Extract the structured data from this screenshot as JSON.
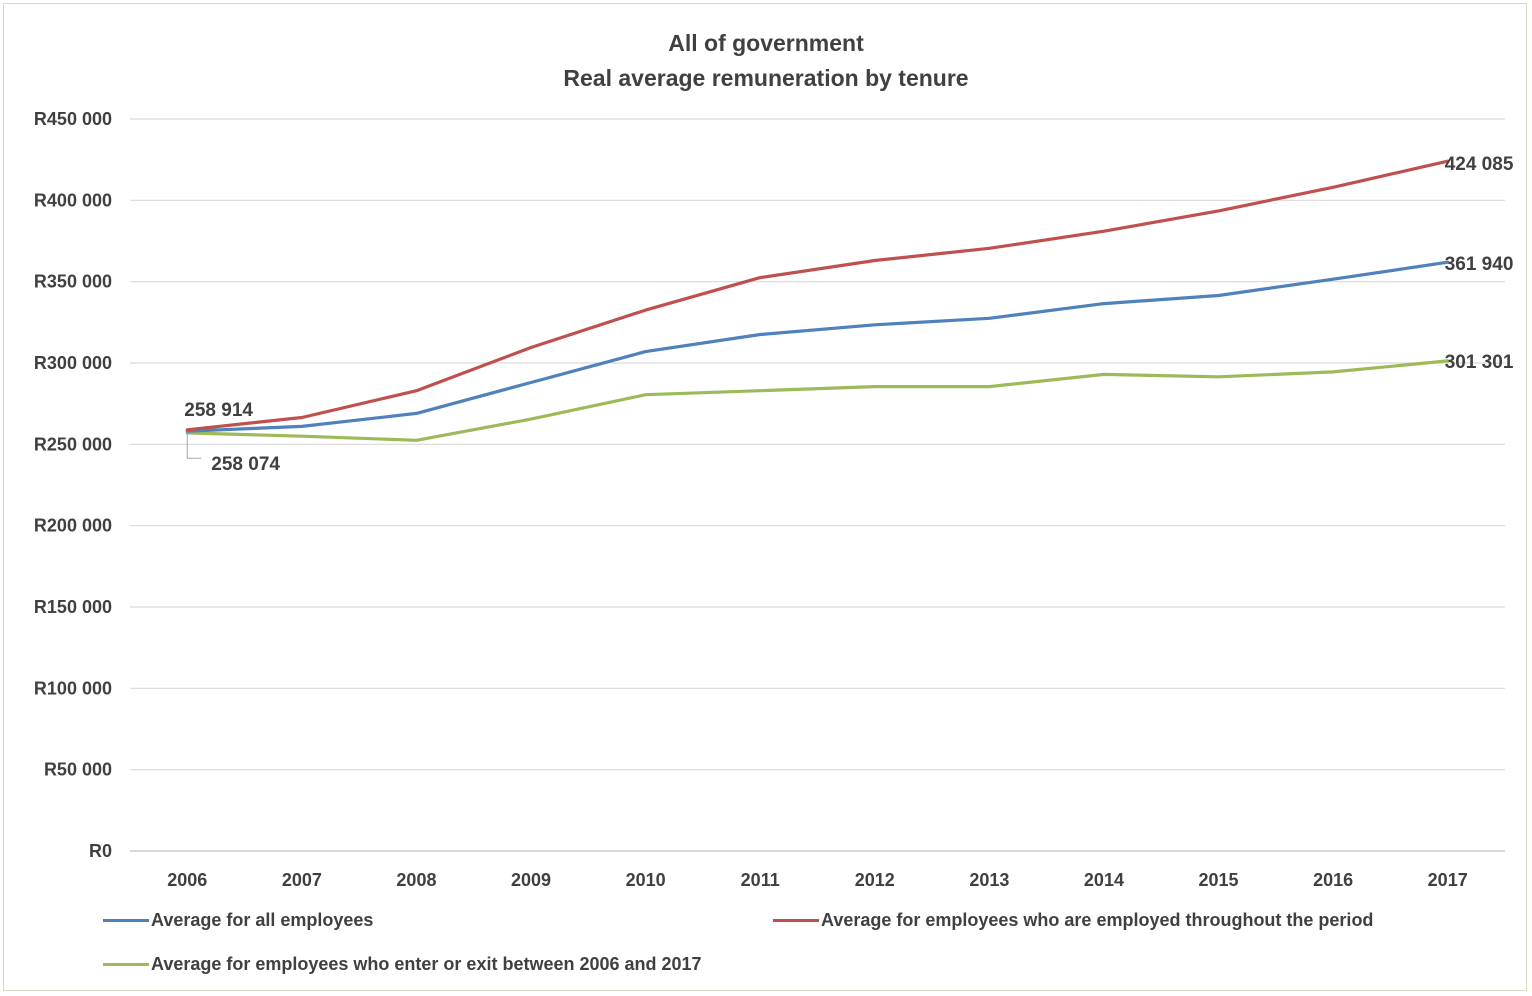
{
  "chart_data": {
    "type": "line",
    "title": "All of government",
    "subtitle": "Real average remuneration by tenure",
    "categories": [
      "2006",
      "2007",
      "2008",
      "2009",
      "2010",
      "2011",
      "2012",
      "2013",
      "2014",
      "2015",
      "2016",
      "2017"
    ],
    "ylim": [
      0,
      450000
    ],
    "yticks": [
      0,
      50000,
      100000,
      150000,
      200000,
      250000,
      300000,
      350000,
      400000,
      450000
    ],
    "ytick_labels": [
      "R0",
      "R50 000",
      "R100 000",
      "R150 000",
      "R200 000",
      "R250 000",
      "R300 000",
      "R350 000",
      "R400 000",
      "R450 000"
    ],
    "grid": "horizontal",
    "legend_position": "bottom",
    "series": [
      {
        "name": "Average for all employees",
        "color": "#4f81bd",
        "values": [
          258074,
          261000,
          269000,
          288000,
          307000,
          317500,
          323500,
          327500,
          336500,
          341500,
          351500,
          361940
        ]
      },
      {
        "name": "Average for employees who are employed throughout the period",
        "color": "#c0504d",
        "values": [
          258914,
          266500,
          283000,
          309500,
          332500,
          352500,
          363000,
          370500,
          381000,
          393500,
          408000,
          424085
        ]
      },
      {
        "name": "Average for employees who enter or exit between 2006 and 2017",
        "color": "#9bbb59",
        "values": [
          257000,
          255000,
          252500,
          265500,
          280500,
          283000,
          285500,
          285500,
          293000,
          291500,
          294500,
          301301
        ]
      }
    ],
    "data_labels": [
      {
        "series": 1,
        "index": 0,
        "text": "258 914"
      },
      {
        "series": 0,
        "index": 0,
        "text": "258 074"
      },
      {
        "series": 1,
        "index": 11,
        "text": "424 085"
      },
      {
        "series": 0,
        "index": 11,
        "text": "361 940"
      },
      {
        "series": 2,
        "index": 11,
        "text": "301 301"
      }
    ]
  }
}
